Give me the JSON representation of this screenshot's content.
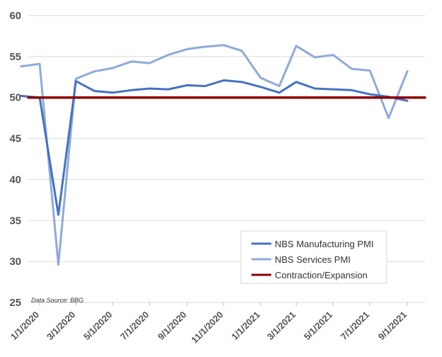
{
  "chart_data": {
    "type": "line",
    "title": "",
    "xlabel": "",
    "ylabel": "",
    "ylim": [
      25,
      60
    ],
    "yticks": [
      25,
      30,
      35,
      40,
      45,
      50,
      55,
      60
    ],
    "x": [
      "2020-01-01",
      "2020-02-01",
      "2020-03-01",
      "2020-04-01",
      "2020-05-01",
      "2020-06-01",
      "2020-07-01",
      "2020-08-01",
      "2020-09-01",
      "2020-10-01",
      "2020-11-01",
      "2020-12-01",
      "2021-01-01",
      "2021-02-01",
      "2021-03-01",
      "2021-04-01",
      "2021-05-01",
      "2021-06-01",
      "2021-07-01",
      "2021-08-01",
      "2021-09-01"
    ],
    "xtick_labels": [
      "1/1/2020",
      "3/1/2020",
      "5/1/2020",
      "7/1/2020",
      "9/1/2020",
      "11/1/2020",
      "1/1/2021",
      "3/1/2021",
      "5/1/2021",
      "7/1/2021",
      "9/1/2021"
    ],
    "series": [
      {
        "name": "NBS Manufacturing PMI",
        "color": "#4472C4",
        "x": [
          "2019-12-01",
          "2020-01-01",
          "2020-02-01",
          "2020-03-01",
          "2020-04-01",
          "2020-05-01",
          "2020-06-01",
          "2020-07-01",
          "2020-08-01",
          "2020-09-01",
          "2020-10-01",
          "2020-11-01",
          "2020-12-01",
          "2021-01-01",
          "2021-02-01",
          "2021-03-01",
          "2021-04-01",
          "2021-05-01",
          "2021-06-01",
          "2021-07-01",
          "2021-08-01",
          "2021-09-01"
        ],
        "values": [
          50.2,
          50.0,
          35.7,
          52.0,
          50.8,
          50.6,
          50.9,
          51.1,
          51.0,
          51.5,
          51.4,
          52.1,
          51.9,
          51.3,
          50.6,
          51.9,
          51.1,
          51.0,
          50.9,
          50.4,
          50.1,
          49.6
        ]
      },
      {
        "name": "NBS Services PMI",
        "color": "#8FAADC",
        "x": [
          "2019-12-01",
          "2020-01-01",
          "2020-02-01",
          "2020-03-01",
          "2020-04-01",
          "2020-05-01",
          "2020-06-01",
          "2020-07-01",
          "2020-08-01",
          "2020-09-01",
          "2020-10-01",
          "2020-11-01",
          "2020-12-01",
          "2021-01-01",
          "2021-02-01",
          "2021-03-01",
          "2021-04-01",
          "2021-05-01",
          "2021-06-01",
          "2021-07-01",
          "2021-08-01",
          "2021-09-01"
        ],
        "values": [
          53.8,
          54.1,
          29.6,
          52.3,
          53.2,
          53.6,
          54.4,
          54.2,
          55.2,
          55.9,
          56.2,
          56.4,
          55.7,
          52.4,
          51.4,
          56.3,
          54.9,
          55.2,
          53.5,
          53.3,
          47.5,
          53.2
        ]
      },
      {
        "name": "Contraction/Expansion",
        "color": "#8B0000",
        "x": [
          "2019-12-01",
          "2021-09-01"
        ],
        "values": [
          50,
          50
        ]
      }
    ],
    "legend": {
      "position": "bottom-right",
      "entries": [
        "NBS Manufacturing PMI",
        "NBS Services PMI",
        "Contraction/Expansion"
      ]
    },
    "annotation": "Data Source: BBG",
    "grid": "horizontal"
  }
}
